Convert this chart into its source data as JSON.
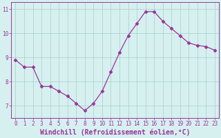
{
  "x": [
    0,
    1,
    2,
    3,
    4,
    5,
    6,
    7,
    8,
    9,
    10,
    11,
    12,
    13,
    14,
    15,
    16,
    17,
    18,
    19,
    20,
    21,
    22,
    23
  ],
  "y": [
    8.9,
    8.6,
    8.6,
    7.8,
    7.8,
    7.6,
    7.4,
    7.1,
    6.8,
    7.1,
    7.6,
    8.4,
    9.2,
    9.9,
    10.4,
    10.9,
    10.9,
    10.5,
    10.2,
    9.9,
    9.6,
    9.5,
    9.45,
    9.3
  ],
  "line_color": "#993399",
  "marker": "D",
  "marker_size": 2.5,
  "bg_color": "#d6f0f0",
  "grid_color": "#aacccc",
  "xlabel": "Windchill (Refroidissement éolien,°C)",
  "xlabel_color": "#993399",
  "ylabel_ticks": [
    7,
    8,
    9,
    10,
    11
  ],
  "xtick_labels": [
    "0",
    "1",
    "2",
    "3",
    "4",
    "5",
    "6",
    "7",
    "8",
    "9",
    "10",
    "11",
    "12",
    "13",
    "14",
    "15",
    "16",
    "17",
    "18",
    "19",
    "20",
    "21",
    "22",
    "23"
  ],
  "ylim": [
    6.5,
    11.3
  ],
  "xlim": [
    -0.5,
    23.5
  ],
  "tick_color": "#993399",
  "tick_fontsize": 5.5,
  "xlabel_fontsize": 7.0,
  "spine_color": "#993399"
}
